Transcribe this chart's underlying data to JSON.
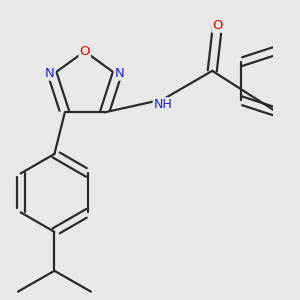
{
  "background_color": "#e8e8e8",
  "bond_color": "#2a2a2a",
  "atom_colors": {
    "O": "#e00000",
    "N": "#2020cc",
    "C": "#2a2a2a",
    "H": "#2a2a2a"
  },
  "figsize": [
    3.0,
    3.0
  ],
  "dpi": 100,
  "lw": 1.6,
  "fontsize": 9.5
}
